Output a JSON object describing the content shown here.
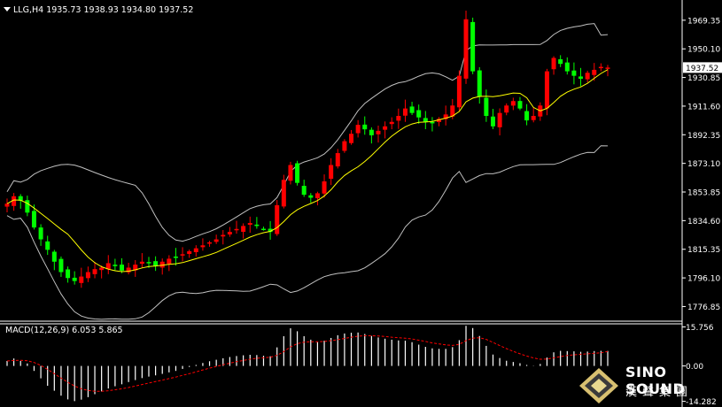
{
  "header": {
    "symbol_tf": "LLG,H4",
    "ohlc": "1935.73 1938.93 1934.80 1937.52"
  },
  "price_badge": "1937.52",
  "macd_header": "MACD(12,26,9) 6.053 5.865",
  "logo": {
    "line1": "SINO SOUND",
    "line2": "漢聲集團"
  },
  "colors": {
    "background": "#000000",
    "bull_candle": "#ff0000",
    "bear_candle": "#00ff00",
    "ma": "#ffff00",
    "bands": "#c0c0c0",
    "macd_hist": "#ffffff",
    "macd_signal": "#ff0000",
    "grid_axis": "#ffffff"
  },
  "chart_data": [
    {
      "type": "candlestick",
      "title": "LLG,H4",
      "ylim": [
        1767,
        1977
      ],
      "y_ticks": [
        "1969.35",
        "1950.10",
        "1930.85",
        "1911.60",
        "1892.35",
        "1873.10",
        "1853.85",
        "1834.60",
        "1815.35",
        "1796.10",
        "1776.85"
      ],
      "y_tick_values": [
        1969.35,
        1950.1,
        1930.85,
        1911.6,
        1892.35,
        1873.1,
        1853.85,
        1834.6,
        1815.35,
        1796.1,
        1776.85
      ],
      "last_price": 1937.52,
      "close": [
        1846,
        1851,
        1848,
        1840,
        1830,
        1822,
        1815,
        1807,
        1800,
        1796,
        1794,
        1797,
        1800,
        1802,
        1803,
        1806,
        1804,
        1801,
        1803,
        1805,
        1807,
        1806,
        1804,
        1807,
        1809,
        1810,
        1812,
        1814,
        1816,
        1818,
        1820,
        1822,
        1825,
        1827,
        1829,
        1831,
        1833,
        1831,
        1829,
        1827,
        1845,
        1862,
        1872,
        1860,
        1852,
        1850,
        1853,
        1861,
        1872,
        1880,
        1888,
        1893,
        1899,
        1896,
        1892,
        1895,
        1898,
        1901,
        1905,
        1910,
        1907,
        1904,
        1901,
        1900,
        1903,
        1906,
        1912,
        1932,
        1970,
        1935,
        1918,
        1905,
        1898,
        1907,
        1912,
        1915,
        1910,
        1902,
        1905,
        1912,
        1935,
        1944,
        1940,
        1935,
        1932,
        1930,
        1934,
        1936,
        1938,
        1937.52
      ],
      "ma": {
        "name": "",
        "values_note": "moving average of close"
      },
      "bollinger": {
        "period": 20,
        "deviation": 2
      }
    },
    {
      "type": "bar+line",
      "title": "MACD(12,26,9) 6.053 5.865",
      "ylim": [
        -15.5,
        17
      ],
      "y_ticks": [
        "15.756",
        "0.00",
        "-14.282"
      ],
      "y_tick_values": [
        15.756,
        0.0,
        -14.282
      ],
      "histogram": [
        2,
        3,
        2,
        1,
        -2,
        -5,
        -8,
        -10,
        -12,
        -13.5,
        -14.2,
        -13.6,
        -12.6,
        -11.4,
        -10.3,
        -9.1,
        -8.2,
        -7.4,
        -6.5,
        -5.7,
        -4.9,
        -4.3,
        -3.8,
        -3.2,
        -2.6,
        -2.0,
        -1.2,
        -0.4,
        0.4,
        1.2,
        1.9,
        2.5,
        3.1,
        3.6,
        4.0,
        4.3,
        4.5,
        4.4,
        4.1,
        3.9,
        7.5,
        12,
        15.2,
        14,
        12,
        10.6,
        9.6,
        10.2,
        11.3,
        12.4,
        13.1,
        13.4,
        13.5,
        12.9,
        12.1,
        11.5,
        11,
        10.6,
        10.3,
        10.2,
        9.6,
        8.6,
        7.7,
        7.1,
        6.9,
        6.9,
        7.6,
        10.4,
        16.2,
        15.3,
        12.1,
        8.1,
        4.6,
        3.2,
        2.1,
        1.6,
        1.1,
        0.4,
        0.1,
        0.8,
        3.4,
        5.5,
        6.1,
        6,
        5.9,
        5.7,
        5.8,
        6,
        6.1,
        6.053
      ],
      "signal": [
        2,
        2.2,
        2.3,
        2.1,
        1.4,
        0.2,
        -1.4,
        -3.1,
        -4.9,
        -6.6,
        -8.1,
        -9.2,
        -9.9,
        -10.2,
        -10.2,
        -10,
        -9.6,
        -9.2,
        -8.7,
        -8.1,
        -7.5,
        -6.9,
        -6.3,
        -5.7,
        -5.1,
        -4.5,
        -3.8,
        -3.1,
        -2.4,
        -1.6,
        -0.9,
        -0.2,
        0.5,
        1.1,
        1.7,
        2.2,
        2.7,
        3.1,
        3.3,
        3.5,
        4.3,
        5.8,
        7.7,
        9,
        9.6,
        9.8,
        9.8,
        9.9,
        10.2,
        10.6,
        11.1,
        11.6,
        12,
        12.2,
        12.2,
        12.1,
        11.9,
        11.6,
        11.4,
        11.2,
        10.9,
        10.4,
        9.9,
        9.3,
        8.9,
        8.5,
        8.3,
        8.7,
        10.2,
        11.2,
        11.4,
        10.7,
        9.5,
        8.2,
        7,
        5.9,
        4.9,
        4,
        3.2,
        2.7,
        2.8,
        3.3,
        3.8,
        4.2,
        4.5,
        4.7,
        4.9,
        5.1,
        5.3,
        5.865
      ]
    }
  ]
}
